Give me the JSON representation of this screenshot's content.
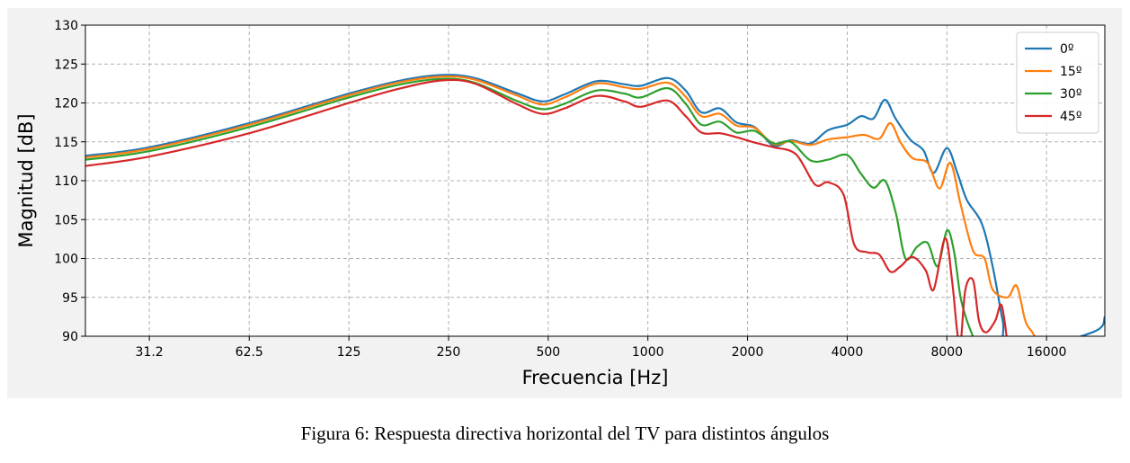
{
  "caption": "Figura 6: Respuesta directiva horizontal del TV para distintos ángulos",
  "chart_data": {
    "type": "line",
    "title": "",
    "xlabel": "Frecuencia [Hz]",
    "ylabel": "Magnitud [dB]",
    "xscale": "log2",
    "xlim": [
      20,
      24000
    ],
    "ylim": [
      90,
      130
    ],
    "x_ticks": [
      31.2,
      62.5,
      125,
      250,
      500,
      1000,
      2000,
      4000,
      8000,
      16000
    ],
    "x_tick_labels": [
      "31.2",
      "62.5",
      "125",
      "250",
      "500",
      "1000",
      "2000",
      "4000",
      "8000",
      "16000"
    ],
    "y_ticks": [
      90,
      95,
      100,
      105,
      110,
      115,
      120,
      125,
      130
    ],
    "grid": true,
    "legend_position": "top-right",
    "series": [
      {
        "name": "0º",
        "color": "#1f77b4",
        "points": [
          [
            20,
            113.2
          ],
          [
            31.2,
            114.3
          ],
          [
            62.5,
            117.4
          ],
          [
            125,
            121.2
          ],
          [
            180,
            122.9
          ],
          [
            240,
            123.6
          ],
          [
            300,
            123.2
          ],
          [
            400,
            121.3
          ],
          [
            480,
            120.2
          ],
          [
            560,
            121.1
          ],
          [
            700,
            122.8
          ],
          [
            850,
            122.4
          ],
          [
            950,
            122.2
          ],
          [
            1150,
            123.2
          ],
          [
            1300,
            121.6
          ],
          [
            1450,
            118.8
          ],
          [
            1650,
            119.3
          ],
          [
            1850,
            117.5
          ],
          [
            2100,
            116.9
          ],
          [
            2400,
            114.5
          ],
          [
            2700,
            115.2
          ],
          [
            3100,
            114.8
          ],
          [
            3500,
            116.5
          ],
          [
            4000,
            117.2
          ],
          [
            4400,
            118.3
          ],
          [
            4800,
            118.0
          ],
          [
            5200,
            120.4
          ],
          [
            5600,
            118.0
          ],
          [
            6200,
            115.3
          ],
          [
            6800,
            113.9
          ],
          [
            7300,
            111.0
          ],
          [
            8000,
            114.2
          ],
          [
            8600,
            111.0
          ],
          [
            9200,
            107.5
          ],
          [
            10200,
            104.5
          ],
          [
            11000,
            99.0
          ],
          [
            11800,
            92.0
          ],
          [
            12500,
            88.0
          ],
          [
            22000,
            90.5
          ],
          [
            24000,
            92.5
          ]
        ]
      },
      {
        "name": "15º",
        "color": "#ff7f0e",
        "points": [
          [
            20,
            113.0
          ],
          [
            31.2,
            114.1
          ],
          [
            62.5,
            117.2
          ],
          [
            125,
            121.0
          ],
          [
            180,
            122.7
          ],
          [
            240,
            123.4
          ],
          [
            300,
            123.0
          ],
          [
            400,
            121.0
          ],
          [
            480,
            119.8
          ],
          [
            560,
            120.7
          ],
          [
            700,
            122.5
          ],
          [
            850,
            122.0
          ],
          [
            950,
            121.8
          ],
          [
            1150,
            122.6
          ],
          [
            1300,
            120.8
          ],
          [
            1450,
            118.3
          ],
          [
            1650,
            118.6
          ],
          [
            1850,
            117.1
          ],
          [
            2100,
            116.8
          ],
          [
            2400,
            114.7
          ],
          [
            2700,
            115.1
          ],
          [
            3100,
            114.6
          ],
          [
            3500,
            115.3
          ],
          [
            4000,
            115.6
          ],
          [
            4500,
            115.9
          ],
          [
            5000,
            115.4
          ],
          [
            5400,
            117.4
          ],
          [
            5800,
            114.9
          ],
          [
            6300,
            112.9
          ],
          [
            7000,
            112.3
          ],
          [
            7600,
            109.0
          ],
          [
            8200,
            112.3
          ],
          [
            8800,
            107.0
          ],
          [
            9600,
            101.0
          ],
          [
            10400,
            100.0
          ],
          [
            11000,
            96.0
          ],
          [
            12200,
            95.0
          ],
          [
            13000,
            96.5
          ],
          [
            13800,
            92.0
          ],
          [
            14500,
            90.5
          ],
          [
            15200,
            89.0
          ]
        ]
      },
      {
        "name": "30º",
        "color": "#2ca02c",
        "points": [
          [
            20,
            112.7
          ],
          [
            31.2,
            113.8
          ],
          [
            62.5,
            116.9
          ],
          [
            125,
            120.7
          ],
          [
            180,
            122.4
          ],
          [
            240,
            123.1
          ],
          [
            300,
            122.6
          ],
          [
            400,
            120.3
          ],
          [
            480,
            119.2
          ],
          [
            560,
            119.9
          ],
          [
            700,
            121.6
          ],
          [
            850,
            121.2
          ],
          [
            950,
            120.7
          ],
          [
            1150,
            121.9
          ],
          [
            1300,
            119.9
          ],
          [
            1450,
            117.2
          ],
          [
            1650,
            117.6
          ],
          [
            1850,
            116.2
          ],
          [
            2100,
            116.4
          ],
          [
            2400,
            114.8
          ],
          [
            2700,
            115.0
          ],
          [
            3100,
            112.6
          ],
          [
            3500,
            112.7
          ],
          [
            4000,
            113.3
          ],
          [
            4400,
            110.9
          ],
          [
            4800,
            109.1
          ],
          [
            5200,
            110.0
          ],
          [
            5600,
            106.0
          ],
          [
            6000,
            100.0
          ],
          [
            6500,
            101.5
          ],
          [
            7000,
            102.0
          ],
          [
            7500,
            99.0
          ],
          [
            8000,
            103.6
          ],
          [
            8400,
            101.0
          ],
          [
            8800,
            95.0
          ],
          [
            9200,
            92.0
          ],
          [
            9800,
            89.0
          ]
        ]
      },
      {
        "name": "45º",
        "color": "#d62728",
        "points": [
          [
            20,
            111.9
          ],
          [
            31.2,
            113.1
          ],
          [
            62.5,
            116.1
          ],
          [
            125,
            120.0
          ],
          [
            180,
            121.9
          ],
          [
            240,
            122.9
          ],
          [
            300,
            122.5
          ],
          [
            400,
            119.9
          ],
          [
            480,
            118.6
          ],
          [
            560,
            119.3
          ],
          [
            700,
            120.9
          ],
          [
            850,
            120.2
          ],
          [
            950,
            119.5
          ],
          [
            1150,
            120.3
          ],
          [
            1300,
            118.3
          ],
          [
            1450,
            116.2
          ],
          [
            1650,
            116.1
          ],
          [
            1850,
            115.6
          ],
          [
            2100,
            114.9
          ],
          [
            2400,
            114.3
          ],
          [
            2800,
            113.4
          ],
          [
            3200,
            109.5
          ],
          [
            3500,
            109.8
          ],
          [
            3900,
            108.2
          ],
          [
            4200,
            101.8
          ],
          [
            4600,
            100.8
          ],
          [
            5000,
            100.5
          ],
          [
            5400,
            98.3
          ],
          [
            5800,
            99.0
          ],
          [
            6300,
            100.2
          ],
          [
            6900,
            98.5
          ],
          [
            7300,
            96.0
          ],
          [
            7900,
            102.6
          ],
          [
            8300,
            97.0
          ],
          [
            8600,
            90.5
          ],
          [
            8800,
            89.0
          ],
          [
            9100,
            96.0
          ],
          [
            9600,
            97.2
          ],
          [
            10000,
            92.0
          ],
          [
            10500,
            90.5
          ],
          [
            11200,
            92.0
          ],
          [
            11700,
            94.0
          ],
          [
            12200,
            89.0
          ]
        ]
      }
    ]
  }
}
